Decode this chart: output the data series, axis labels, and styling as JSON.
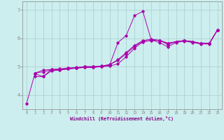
{
  "xlabel": "Windchill (Refroidissement éolien,°C)",
  "bg_color": "#cceeee",
  "grid_color": "#aacccc",
  "line_color": "#aa00aa",
  "xlim": [
    -0.5,
    23.5
  ],
  "ylim": [
    3.5,
    7.3
  ],
  "yticks": [
    4,
    5,
    6,
    7
  ],
  "xticks": [
    0,
    1,
    2,
    3,
    4,
    5,
    6,
    7,
    8,
    9,
    10,
    11,
    12,
    13,
    14,
    15,
    16,
    17,
    18,
    19,
    20,
    21,
    22,
    23
  ],
  "series": [
    [
      0,
      3.7,
      1,
      4.75,
      2,
      4.65,
      3,
      4.9,
      4,
      4.9,
      5,
      4.95,
      6,
      4.95,
      7,
      5.0,
      8,
      5.0,
      9,
      5.0,
      10,
      5.05,
      11,
      5.85,
      12,
      6.1,
      13,
      6.8,
      14,
      6.95,
      15,
      5.95,
      16,
      5.85,
      17,
      5.7,
      18,
      5.85,
      19,
      5.9,
      20,
      5.85,
      21,
      5.8,
      22,
      5.8,
      23,
      6.3
    ],
    [
      1,
      4.65,
      2,
      4.65,
      3,
      4.85,
      4,
      4.88,
      5,
      4.92,
      6,
      4.95,
      7,
      4.97,
      8,
      4.97,
      9,
      5.0,
      10,
      5.02,
      11,
      5.1,
      12,
      5.35,
      13,
      5.65,
      14,
      5.88,
      15,
      5.92,
      16,
      5.93,
      17,
      5.78,
      18,
      5.88,
      19,
      5.92,
      20,
      5.88,
      21,
      5.82,
      22,
      5.82,
      23,
      6.3
    ],
    [
      1,
      4.77,
      2,
      4.88,
      3,
      4.9,
      4,
      4.92,
      5,
      4.95,
      6,
      4.97,
      7,
      5.0,
      8,
      5.0,
      9,
      5.02,
      10,
      5.07,
      11,
      5.25,
      12,
      5.5,
      13,
      5.75,
      14,
      5.92,
      15,
      5.97,
      16,
      5.93,
      17,
      5.83,
      18,
      5.88,
      19,
      5.92,
      20,
      5.88,
      21,
      5.82,
      22,
      5.82,
      23,
      6.3
    ],
    [
      1,
      4.77,
      2,
      4.82,
      3,
      4.88,
      4,
      4.88,
      5,
      4.92,
      6,
      4.95,
      7,
      4.98,
      8,
      4.98,
      9,
      5.02,
      10,
      5.07,
      11,
      5.22,
      12,
      5.45,
      13,
      5.72,
      14,
      5.88,
      15,
      5.93,
      16,
      5.93,
      17,
      5.82,
      18,
      5.88,
      19,
      5.92,
      20,
      5.88,
      21,
      5.82,
      22,
      5.82,
      23,
      6.3
    ]
  ]
}
